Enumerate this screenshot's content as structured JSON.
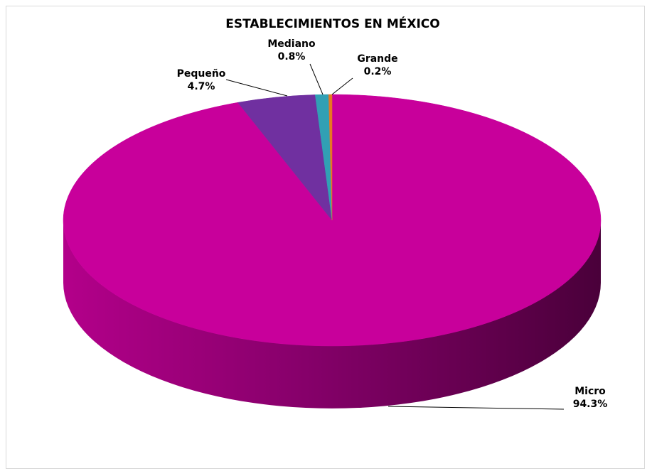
{
  "chart_data": {
    "type": "pie",
    "title": "ESTABLECIMIENTOS EN MÉXICO",
    "style": "3d",
    "categories": [
      "Micro",
      "Pequeño",
      "Mediano",
      "Grande"
    ],
    "values": [
      94.3,
      4.7,
      0.8,
      0.2
    ],
    "value_labels": [
      "94.3%",
      "4.7%",
      "0.8%",
      "0.2%"
    ],
    "colors": [
      "#c8009b",
      "#7030a0",
      "#31a0b4",
      "#e87722"
    ],
    "legend": "none"
  }
}
